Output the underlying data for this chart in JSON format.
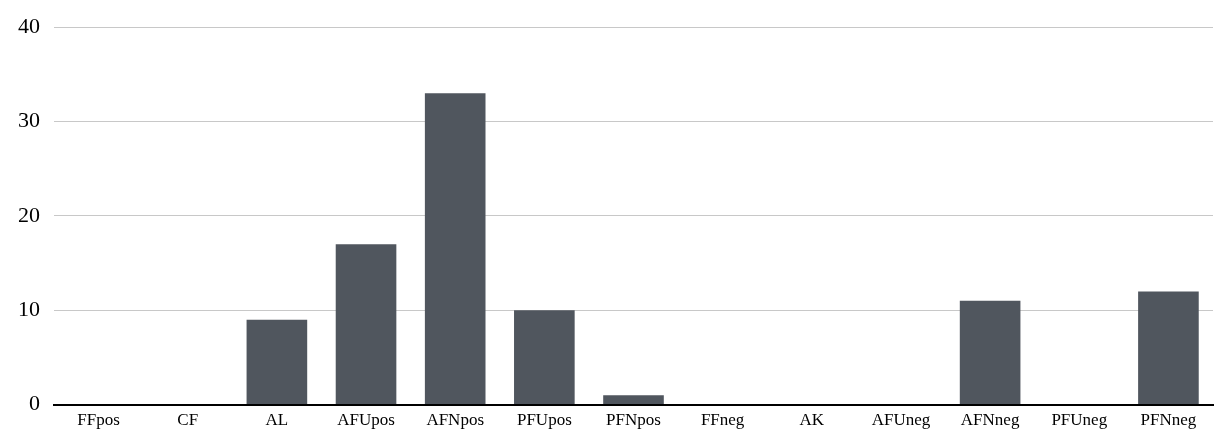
{
  "chart_data": {
    "type": "bar",
    "categories": [
      "FFpos",
      "CF",
      "AL",
      "AFUpos",
      "AFNpos",
      "PFUpos",
      "PFNpos",
      "FFneg",
      "AK",
      "AFUneg",
      "AFNneg",
      "PFUneg",
      "PFNneg"
    ],
    "values": [
      0,
      0,
      9,
      17,
      33,
      10,
      1,
      0,
      0,
      0,
      11,
      0,
      12
    ],
    "color": "#50565e",
    "ylim": [
      0,
      40
    ],
    "yticks": [
      0,
      10,
      20,
      30,
      40
    ],
    "grid": "y",
    "legend": false
  }
}
